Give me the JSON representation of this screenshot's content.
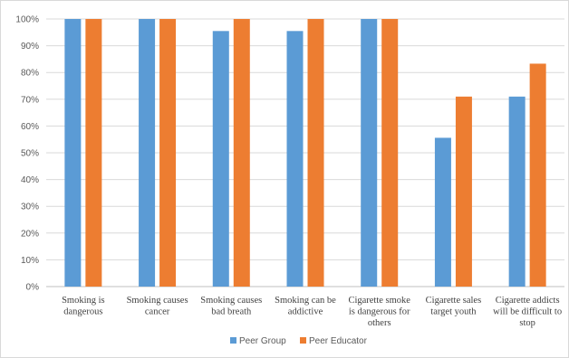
{
  "chart_data": {
    "type": "bar",
    "categories": [
      [
        "Smoking is",
        "dangerous"
      ],
      [
        "Smoking causes",
        "cancer"
      ],
      [
        "Smoking causes",
        "bad breath"
      ],
      [
        "Smoking can be",
        "addictive"
      ],
      [
        "Cigarette smoke",
        "is dangerous for",
        "others"
      ],
      [
        "Cigarette sales",
        "target youth"
      ],
      [
        "Cigarette addicts",
        "will be difficult to",
        "stop"
      ]
    ],
    "series": [
      {
        "name": "Peer Group",
        "color": "#5b9bd5",
        "values": [
          100,
          100,
          95.5,
          95.5,
          100,
          55.6,
          71
        ]
      },
      {
        "name": "Peer Educator",
        "color": "#ed7d31",
        "values": [
          100,
          100,
          100,
          100,
          100,
          71,
          83.3
        ]
      }
    ],
    "ylim": [
      0,
      100
    ],
    "yticks": [
      "0%",
      "10%",
      "20%",
      "30%",
      "40%",
      "50%",
      "60%",
      "70%",
      "80%",
      "90%",
      "100%"
    ],
    "grid": true,
    "legend": "bottom"
  }
}
